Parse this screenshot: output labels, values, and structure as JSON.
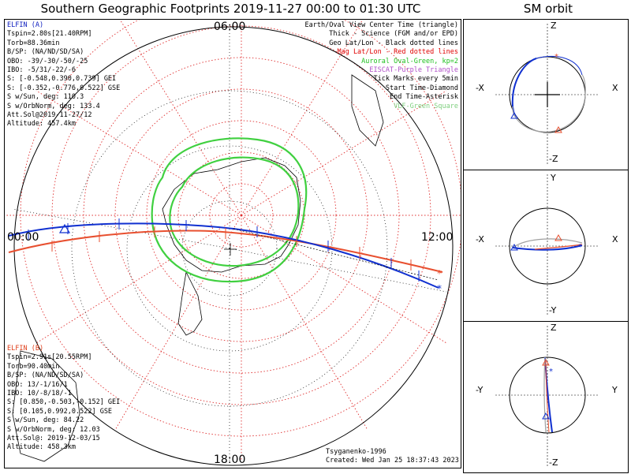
{
  "title": "Southern Geographic Footprints 2019-11-27 00:00 to 01:30 UTC",
  "sm_title": "SM orbit",
  "time_labels": {
    "top": "06:00",
    "left": "00:00",
    "right": "12:00",
    "bottom": "18:00"
  },
  "elfin_a": {
    "name": "ELFIN (A)",
    "lines": [
      "Tspin=2.80s[21.40RPM]",
      "Torb=88.36min",
      "B/SP: (NA/ND/SD/SA)",
      "OBO: -39/-30/-50/-25",
      "IBO: -5/31/-22/-6",
      "S: [-0.548,0.390,0.739] GEI",
      "S: [-0.352,-0.776,0.522] GSE",
      "S w/Sun, deg: 110.3",
      "S w/OrbNorm, deg: 133.4",
      "Att.Sol@2019-11-27/12",
      "Altitude: 457.4km"
    ],
    "color": "#1020c0"
  },
  "elfin_b": {
    "name": "ELFIN (B)",
    "lines": [
      "Tspin=2.91s[20.55RPM]",
      "Torb=90.40min",
      "B/SP: (NA/ND/SD/SA)",
      "OBO: 13/-1/16/1",
      "IBO: 10/-8/18/-1",
      "S: [0.850,-0.503,-0.152] GEI",
      "S: [0.105,0.992,0.522] GSE",
      "S w/Sun, deg: 84.22",
      "S w/OrbNorm, deg: 12.03",
      "Att.Sol@: 2019-12-03/15",
      "Altitude: 458.3km"
    ],
    "color": "#e0401c"
  },
  "legend": [
    {
      "text": "Earth/Oval View Center Time (triangle)",
      "color": "#000000"
    },
    {
      "text": "Thick - Science (FGM and/or EPD)",
      "color": "#000000"
    },
    {
      "text": "Geo Lat/Lon - Black dotted lines",
      "color": "#000000"
    },
    {
      "text": "Mag Lat/Lon - Red dotted lines",
      "color": "#e00000"
    },
    {
      "text": "Auroral Oval-Green, kp=2",
      "color": "#20c020"
    },
    {
      "text": "EISCAT-Purple Triangle",
      "color": "#b050c8"
    },
    {
      "text": "Tick Marks every 5min",
      "color": "#000000"
    },
    {
      "text": "Start Time-Diamond",
      "color": "#000000"
    },
    {
      "text": "End Time-Asterisk",
      "color": "#000000"
    },
    {
      "text": "VLF-Green Square",
      "color": "#80d080"
    }
  ],
  "credits": {
    "author": "Tsyganenko-1996",
    "created": "Created: Wed Jan 25 18:37:43 2023"
  },
  "sm_panels": [
    {
      "top": "Z",
      "bottom": "-Z",
      "left": "-X",
      "right": "X"
    },
    {
      "top": "Y",
      "bottom": "-Y",
      "left": "-X",
      "right": "X"
    },
    {
      "top": "Z",
      "bottom": "-Z",
      "left": "-Y",
      "right": "Y"
    }
  ]
}
